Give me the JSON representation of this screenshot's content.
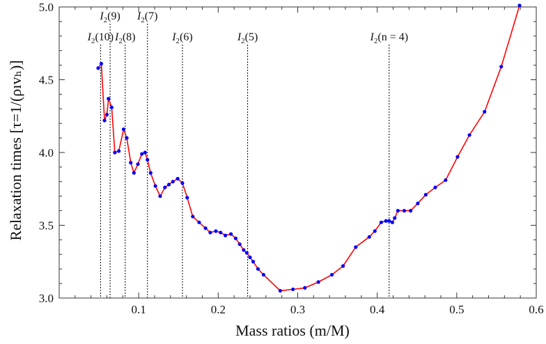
{
  "chart_data": {
    "type": "line",
    "title": "",
    "xlabel": "Mass ratios (m/M)",
    "ylabel": "Relaxation times [τ=1/(ρıvₕ)]",
    "xlim": [
      0.0,
      0.6
    ],
    "ylim": [
      3.0,
      5.0
    ],
    "x_ticks": [
      {
        "value": 0.1,
        "label": "0.1"
      },
      {
        "value": 0.2,
        "label": "0.2"
      },
      {
        "value": 0.3,
        "label": "0.3"
      },
      {
        "value": 0.4,
        "label": "0.4"
      },
      {
        "value": 0.5,
        "label": "0.5"
      },
      {
        "value": 0.6,
        "label": "0.6"
      }
    ],
    "y_ticks": [
      {
        "value": 3.0,
        "label": "3.0"
      },
      {
        "value": 3.5,
        "label": "3.5"
      },
      {
        "value": 4.0,
        "label": "4.0"
      },
      {
        "value": 4.5,
        "label": "4.5"
      },
      {
        "value": 5.0,
        "label": "5.0"
      }
    ],
    "colors": {
      "line": "#ff0000",
      "marker": "#0000ff",
      "axis": "#333333",
      "vline": "#000000"
    },
    "series": [
      {
        "x": [
          0.049,
          0.053,
          0.057,
          0.06,
          0.062,
          0.066,
          0.07,
          0.075,
          0.081,
          0.085,
          0.09,
          0.094,
          0.099,
          0.104,
          0.108,
          0.111,
          0.115,
          0.121,
          0.127,
          0.133,
          0.138,
          0.143,
          0.149,
          0.155,
          0.161,
          0.168,
          0.176,
          0.184,
          0.19,
          0.197,
          0.203,
          0.209,
          0.216,
          0.222,
          0.227,
          0.232,
          0.236,
          0.24,
          0.244,
          0.25,
          0.257,
          0.278,
          0.294,
          0.309,
          0.326,
          0.343,
          0.357,
          0.373,
          0.39,
          0.397,
          0.405,
          0.411,
          0.415,
          0.419,
          0.422,
          0.426,
          0.434,
          0.442,
          0.451,
          0.461,
          0.473,
          0.486,
          0.501,
          0.516,
          0.535,
          0.556,
          0.579
        ],
        "y": [
          4.58,
          4.61,
          4.22,
          4.26,
          4.37,
          4.31,
          4.0,
          4.01,
          4.16,
          4.1,
          3.93,
          3.86,
          3.92,
          3.99,
          4.0,
          3.95,
          3.86,
          3.77,
          3.7,
          3.76,
          3.78,
          3.8,
          3.82,
          3.79,
          3.69,
          3.56,
          3.52,
          3.48,
          3.45,
          3.46,
          3.45,
          3.43,
          3.44,
          3.41,
          3.37,
          3.33,
          3.31,
          3.28,
          3.25,
          3.2,
          3.16,
          3.05,
          3.06,
          3.07,
          3.11,
          3.16,
          3.22,
          3.35,
          3.42,
          3.46,
          3.52,
          3.53,
          3.53,
          3.52,
          3.55,
          3.6,
          3.6,
          3.6,
          3.65,
          3.71,
          3.76,
          3.81,
          3.97,
          4.12,
          4.28,
          4.59,
          5.01
        ]
      }
    ],
    "vlines": [
      {
        "x": 0.052,
        "sub": "2",
        "label": "(10)",
        "row": 1
      },
      {
        "x": 0.064,
        "sub": "2",
        "label": "(9)",
        "row": 0
      },
      {
        "x": 0.083,
        "sub": "2",
        "label": "(8)",
        "row": 1
      },
      {
        "x": 0.111,
        "sub": "2",
        "label": "(7)",
        "row": 0
      },
      {
        "x": 0.155,
        "sub": "2",
        "label": "(6)",
        "row": 1
      },
      {
        "x": 0.237,
        "sub": "2",
        "label": "(5)",
        "row": 1
      },
      {
        "x": 0.415,
        "sub": "2",
        "label": "(n = 4)",
        "row": 1
      }
    ],
    "vline_letter": "I",
    "grid": false,
    "legend": "none"
  }
}
